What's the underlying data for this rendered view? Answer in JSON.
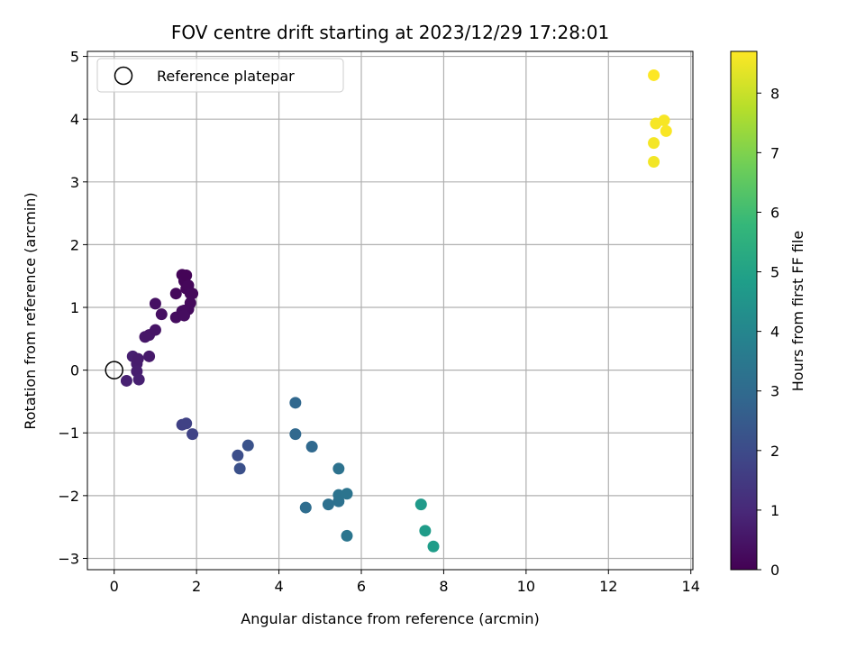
{
  "chart_data": {
    "type": "scatter",
    "title": "FOV centre drift starting at 2023/12/29 17:28:01",
    "xlabel": "Angular distance from reference (arcmin)",
    "ylabel": "Rotation from reference (arcmin)",
    "xlim": [
      -0.65,
      14.05
    ],
    "ylim": [
      -3.18,
      5.08
    ],
    "xticks": [
      "0",
      "2",
      "4",
      "6",
      "8",
      "10",
      "12",
      "14"
    ],
    "xtick_values": [
      0,
      2,
      4,
      6,
      8,
      10,
      12,
      14
    ],
    "yticks": [
      "−3",
      "−2",
      "−1",
      "0",
      "1",
      "2",
      "3",
      "4",
      "5"
    ],
    "ytick_values": [
      -3,
      -2,
      -1,
      0,
      1,
      2,
      3,
      4,
      5
    ],
    "grid": true,
    "legend": {
      "placement": "upper-left",
      "entries": [
        "Reference platepar"
      ]
    },
    "reference_point": {
      "x": 0,
      "y": 0
    },
    "colorbar": {
      "label": "Hours from first FF file",
      "range": [
        0,
        8.7
      ],
      "ticks": [
        "0",
        "1",
        "2",
        "3",
        "4",
        "5",
        "6",
        "7",
        "8"
      ],
      "tick_values": [
        0,
        1,
        2,
        3,
        4,
        5,
        6,
        7,
        8
      ],
      "colormap": "viridis",
      "colors": [
        "#440154",
        "#482878",
        "#3e4989",
        "#31688e",
        "#26828e",
        "#1f9e89",
        "#35b779",
        "#6ece58",
        "#b5de2b",
        "#fde725"
      ]
    },
    "points": [
      {
        "x": 0.3,
        "y": -0.17,
        "hours": 0.8
      },
      {
        "x": 0.45,
        "y": 0.22,
        "hours": 0.75
      },
      {
        "x": 0.55,
        "y": 0.1,
        "hours": 0.7
      },
      {
        "x": 0.55,
        "y": -0.02,
        "hours": 0.72
      },
      {
        "x": 0.6,
        "y": -0.15,
        "hours": 0.78
      },
      {
        "x": 0.58,
        "y": 0.18,
        "hours": 0.68
      },
      {
        "x": 0.85,
        "y": 0.22,
        "hours": 0.6
      },
      {
        "x": 0.75,
        "y": 0.53,
        "hours": 0.55
      },
      {
        "x": 0.85,
        "y": 0.56,
        "hours": 0.52
      },
      {
        "x": 1.0,
        "y": 0.64,
        "hours": 0.48
      },
      {
        "x": 1.0,
        "y": 1.06,
        "hours": 0.4
      },
      {
        "x": 1.15,
        "y": 0.89,
        "hours": 0.38
      },
      {
        "x": 1.5,
        "y": 0.84,
        "hours": 0.3
      },
      {
        "x": 1.5,
        "y": 1.22,
        "hours": 0.2
      },
      {
        "x": 1.65,
        "y": 1.52,
        "hours": 0.1
      },
      {
        "x": 1.7,
        "y": 1.42,
        "hours": 0.12
      },
      {
        "x": 1.75,
        "y": 1.51,
        "hours": 0.08
      },
      {
        "x": 1.75,
        "y": 1.3,
        "hours": 0.14
      },
      {
        "x": 1.8,
        "y": 1.35,
        "hours": 0.16
      },
      {
        "x": 1.85,
        "y": 1.22,
        "hours": 0.18
      },
      {
        "x": 1.9,
        "y": 1.22,
        "hours": 0.2
      },
      {
        "x": 1.85,
        "y": 1.07,
        "hours": 0.22
      },
      {
        "x": 1.8,
        "y": 0.97,
        "hours": 0.24
      },
      {
        "x": 1.7,
        "y": 0.95,
        "hours": 0.26
      },
      {
        "x": 1.65,
        "y": 0.94,
        "hours": 0.28
      },
      {
        "x": 1.7,
        "y": 0.87,
        "hours": 0.3
      },
      {
        "x": 1.65,
        "y": -0.87,
        "hours": 1.7
      },
      {
        "x": 1.75,
        "y": -0.85,
        "hours": 1.72
      },
      {
        "x": 1.9,
        "y": -1.02,
        "hours": 1.75
      },
      {
        "x": 3.0,
        "y": -1.36,
        "hours": 2.1
      },
      {
        "x": 3.05,
        "y": -1.57,
        "hours": 2.15
      },
      {
        "x": 3.25,
        "y": -1.2,
        "hours": 2.2
      },
      {
        "x": 4.4,
        "y": -0.52,
        "hours": 2.9
      },
      {
        "x": 4.4,
        "y": -1.02,
        "hours": 2.92
      },
      {
        "x": 4.8,
        "y": -1.22,
        "hours": 2.95
      },
      {
        "x": 4.65,
        "y": -2.19,
        "hours": 3.1
      },
      {
        "x": 5.2,
        "y": -2.14,
        "hours": 3.2
      },
      {
        "x": 5.45,
        "y": -2.09,
        "hours": 3.25
      },
      {
        "x": 5.45,
        "y": -1.99,
        "hours": 3.3
      },
      {
        "x": 5.45,
        "y": -1.57,
        "hours": 3.28
      },
      {
        "x": 5.65,
        "y": -1.97,
        "hours": 3.35
      },
      {
        "x": 5.65,
        "y": -2.64,
        "hours": 3.4
      },
      {
        "x": 7.45,
        "y": -2.14,
        "hours": 4.7
      },
      {
        "x": 7.55,
        "y": -2.56,
        "hours": 4.75
      },
      {
        "x": 7.75,
        "y": -2.81,
        "hours": 4.8
      },
      {
        "x": 13.1,
        "y": 4.7,
        "hours": 8.7
      },
      {
        "x": 13.15,
        "y": 3.93,
        "hours": 8.6
      },
      {
        "x": 13.35,
        "y": 3.98,
        "hours": 8.62
      },
      {
        "x": 13.4,
        "y": 3.81,
        "hours": 8.64
      },
      {
        "x": 13.1,
        "y": 3.62,
        "hours": 8.58
      },
      {
        "x": 13.1,
        "y": 3.32,
        "hours": 8.55
      }
    ]
  }
}
